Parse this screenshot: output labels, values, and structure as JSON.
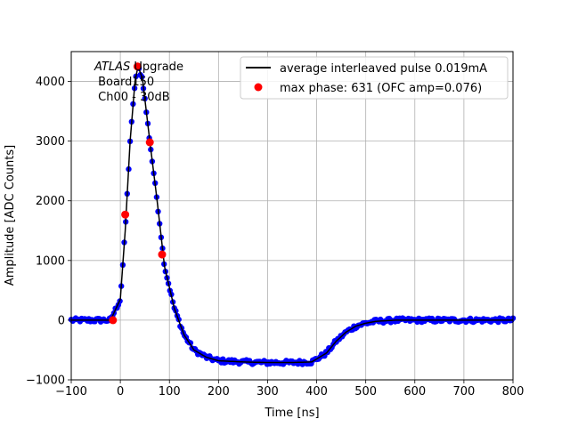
{
  "chart_data": {
    "type": "scatter",
    "title": "",
    "xlabel": "Time [ns]",
    "ylabel": "Amplitude [ADC Counts]",
    "xlim": [
      -100,
      800
    ],
    "ylim": [
      -1000,
      4500
    ],
    "grid": true,
    "xticks": [
      -100,
      0,
      100,
      200,
      300,
      400,
      500,
      600,
      700,
      800
    ],
    "xtick_labels": [
      "−100",
      "0",
      "100",
      "200",
      "300",
      "400",
      "500",
      "600",
      "700",
      "800"
    ],
    "yticks": [
      -1000,
      0,
      1000,
      2000,
      3000,
      4000
    ],
    "ytick_labels": [
      "−1000",
      "0",
      "1000",
      "2000",
      "3000",
      "4000"
    ],
    "annotation": {
      "line1_italic": "ATLAS",
      "line1_rest": " Upgrade",
      "line2": " Board150",
      "line3": " Ch00 - 30dB"
    },
    "legend": {
      "position": "upper right",
      "entries": [
        {
          "label": "average interleaved pulse 0.019mA",
          "marker": "line",
          "color": "#000000"
        },
        {
          "label": "max phase: 631 (OFC amp=0.076)",
          "marker": "circle",
          "color": "#ff0000"
        }
      ]
    },
    "series": [
      {
        "name": "samples",
        "color": "#0000ff",
        "style": "points",
        "x": [
          -100,
          -50,
          -20,
          0,
          10,
          20,
          30,
          36,
          45,
          60,
          75,
          90,
          110,
          130,
          150,
          175,
          200,
          250,
          300,
          350,
          390,
          420,
          440,
          460,
          480,
          500,
          520,
          560,
          600,
          700,
          800
        ],
        "y": [
          0,
          0,
          0,
          350,
          1500,
          3000,
          4000,
          4250,
          4050,
          3000,
          2000,
          900,
          200,
          -250,
          -500,
          -620,
          -680,
          -700,
          -710,
          -710,
          -700,
          -550,
          -350,
          -200,
          -100,
          -50,
          -20,
          0,
          0,
          0,
          0
        ]
      },
      {
        "name": "average interleaved pulse 0.019mA",
        "color": "#000000",
        "style": "line",
        "x": [
          -100,
          -50,
          -20,
          0,
          10,
          20,
          30,
          36,
          45,
          60,
          75,
          90,
          110,
          130,
          150,
          175,
          200,
          250,
          300,
          350,
          390,
          420,
          440,
          460,
          480,
          500,
          520,
          560,
          600,
          700,
          800
        ],
        "y": [
          0,
          0,
          0,
          350,
          1500,
          3000,
          4000,
          4250,
          4050,
          3000,
          2000,
          900,
          200,
          -250,
          -500,
          -620,
          -680,
          -700,
          -710,
          -710,
          -700,
          -550,
          -350,
          -200,
          -100,
          -50,
          -20,
          0,
          0,
          0,
          0
        ]
      },
      {
        "name": "max phase: 631 (OFC amp=0.076)",
        "color": "#ff0000",
        "style": "markers",
        "x": [
          -15,
          10,
          35,
          60,
          85
        ],
        "y": [
          0,
          1770,
          4250,
          2980,
          1100
        ]
      }
    ]
  }
}
